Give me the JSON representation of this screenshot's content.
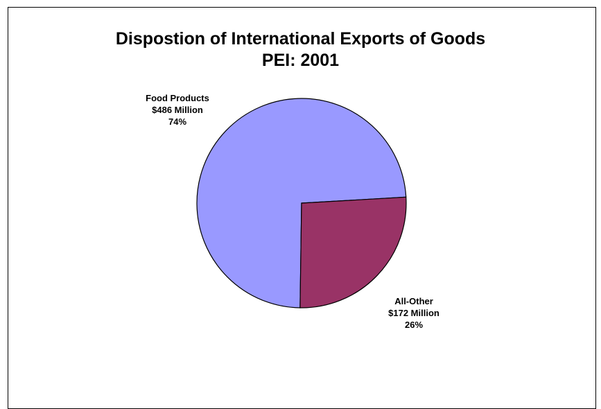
{
  "chart_data": {
    "type": "pie",
    "title": "Dispostion of International Exports of Goods",
    "subtitle": "PEI: 2001",
    "slices": [
      {
        "category": "Food Products",
        "value_text": "$486 Million",
        "value": 486,
        "percent_text": "74%",
        "percent": 74,
        "color": "#9999ff"
      },
      {
        "category": "All-Other",
        "value_text": "$172 Million",
        "value": 172,
        "percent_text": "26%",
        "percent": 26,
        "color": "#993366"
      }
    ],
    "unit": "Million dollars",
    "legend": "none"
  }
}
